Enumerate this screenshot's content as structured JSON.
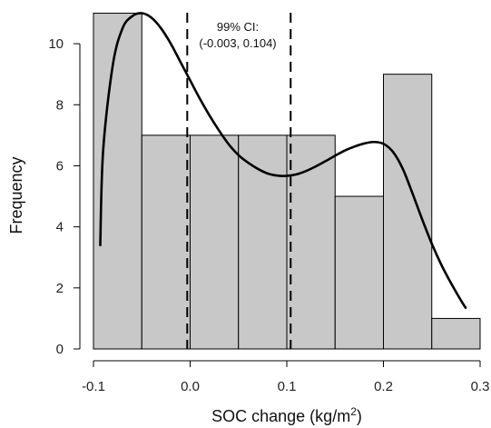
{
  "chart_data": {
    "type": "bar",
    "bin_edges": [
      -0.1,
      -0.05,
      0.0,
      0.05,
      0.1,
      0.15,
      0.2,
      0.25,
      0.3
    ],
    "counts": [
      11,
      7,
      7,
      7,
      7,
      5,
      9,
      1
    ],
    "xlabel": "SOC change (kg/m",
    "xlabel_superscript": "2",
    "xlabel_suffix": ")",
    "ylabel": "Frequency",
    "xlim": [
      -0.1,
      0.3
    ],
    "ylim": [
      0,
      11
    ],
    "x_ticks": [
      -0.1,
      0.0,
      0.1,
      0.2,
      0.3
    ],
    "x_tick_labels": [
      "-0.1",
      "0.0",
      "0.1",
      "0.2",
      "0.3"
    ],
    "y_ticks": [
      0,
      2,
      4,
      6,
      8,
      10
    ],
    "y_tick_labels": [
      "0",
      "2",
      "4",
      "6",
      "8",
      "10"
    ],
    "ci_lines": [
      -0.003,
      0.104
    ],
    "annotation_line1": "99% CI:",
    "annotation_line2": "(-0.003, 0.104)",
    "density_curve": [
      [
        -0.093,
        3.4
      ],
      [
        -0.09,
        6.5
      ],
      [
        -0.08,
        9.3
      ],
      [
        -0.07,
        10.5
      ],
      [
        -0.06,
        10.9
      ],
      [
        -0.05,
        11.0
      ],
      [
        -0.04,
        10.85
      ],
      [
        -0.03,
        10.5
      ],
      [
        -0.02,
        10.0
      ],
      [
        -0.01,
        9.4
      ],
      [
        0.0,
        8.8
      ],
      [
        0.01,
        8.2
      ],
      [
        0.02,
        7.65
      ],
      [
        0.03,
        7.15
      ],
      [
        0.04,
        6.7
      ],
      [
        0.05,
        6.35
      ],
      [
        0.06,
        6.1
      ],
      [
        0.07,
        5.9
      ],
      [
        0.08,
        5.75
      ],
      [
        0.09,
        5.68
      ],
      [
        0.1,
        5.67
      ],
      [
        0.11,
        5.72
      ],
      [
        0.12,
        5.83
      ],
      [
        0.13,
        5.98
      ],
      [
        0.14,
        6.15
      ],
      [
        0.15,
        6.33
      ],
      [
        0.16,
        6.5
      ],
      [
        0.17,
        6.63
      ],
      [
        0.18,
        6.73
      ],
      [
        0.19,
        6.78
      ],
      [
        0.2,
        6.72
      ],
      [
        0.21,
        6.45
      ],
      [
        0.22,
        5.9
      ],
      [
        0.23,
        5.1
      ],
      [
        0.24,
        4.25
      ],
      [
        0.25,
        3.45
      ],
      [
        0.26,
        2.75
      ],
      [
        0.27,
        2.15
      ],
      [
        0.28,
        1.6
      ],
      [
        0.285,
        1.35
      ]
    ],
    "bar_fill": "#c8c8c8",
    "bar_stroke": "#000000",
    "curve_color": "#000000"
  }
}
